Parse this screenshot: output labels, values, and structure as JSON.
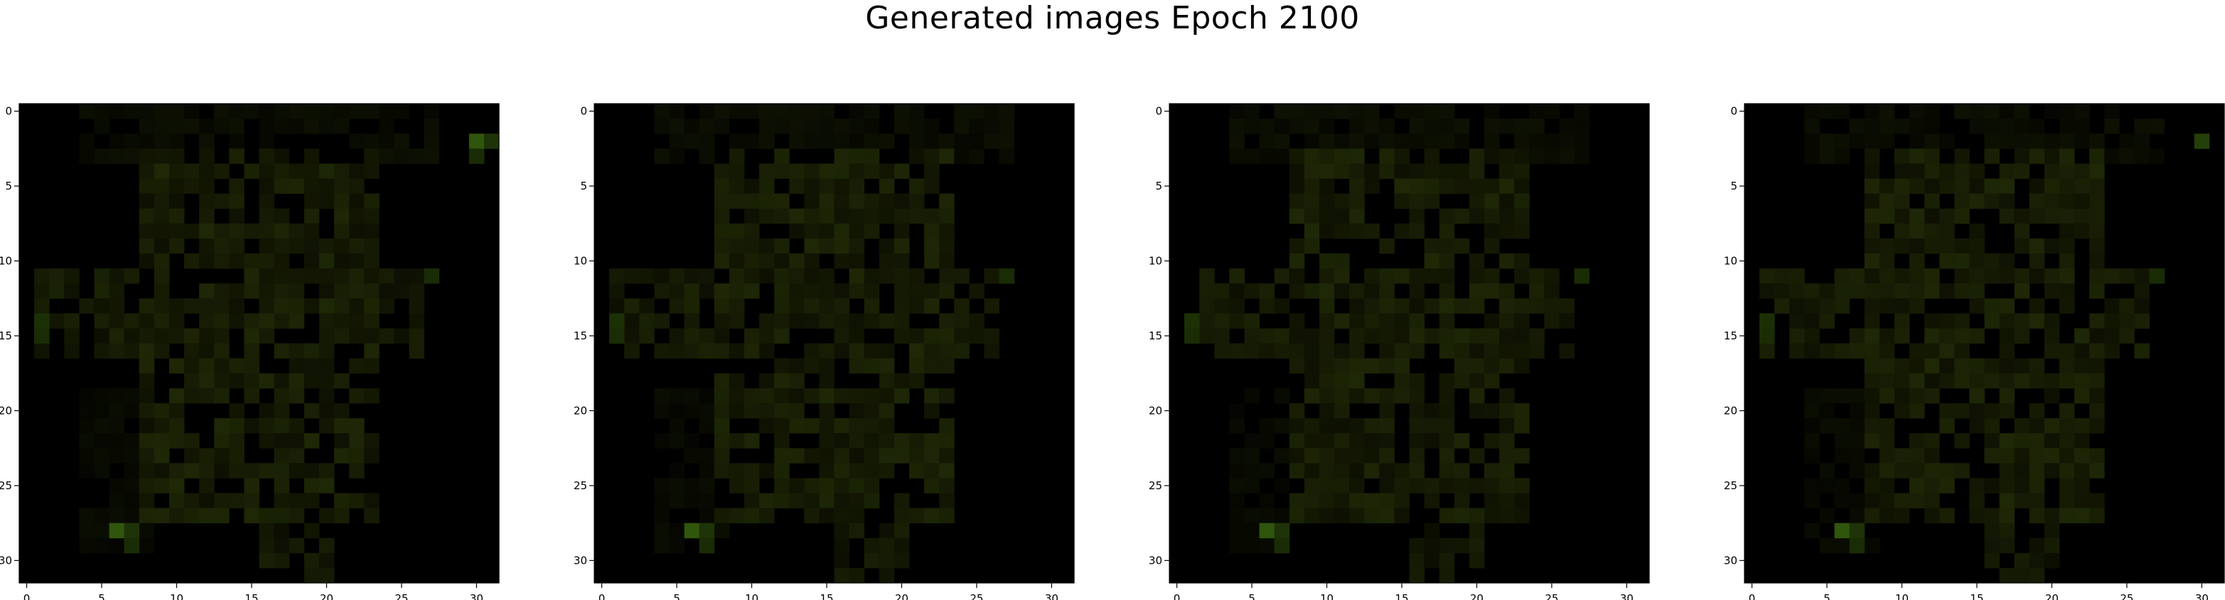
{
  "figure": {
    "title": "Generated images Epoch 2100",
    "panel_count": 4,
    "image_size": 32,
    "ticks": [
      0,
      5,
      10,
      15,
      20,
      25,
      30
    ],
    "tick_labels": [
      "0",
      "5",
      "10",
      "15",
      "20",
      "25",
      "30"
    ],
    "colors": {
      "background": "#ffffff",
      "axis": "#000000",
      "pixel_base": "#000000",
      "highlight_green": "#4f6a12"
    }
  }
}
